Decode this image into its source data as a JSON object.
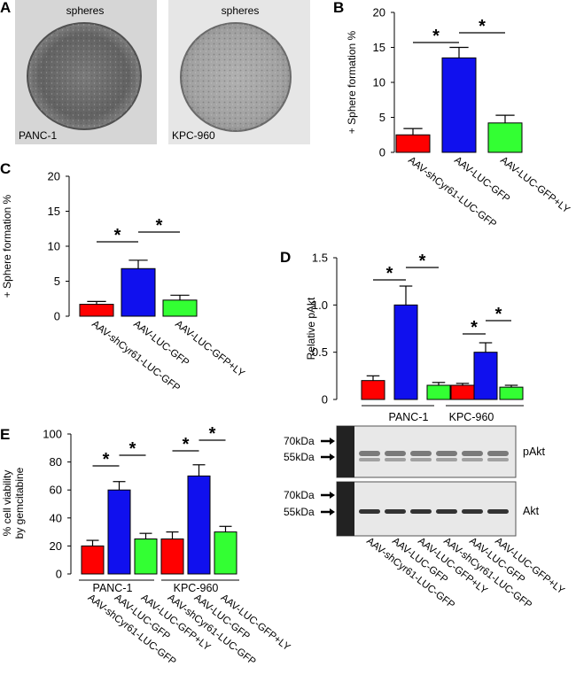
{
  "colors": {
    "red": "#ff0000",
    "blue": "#1010ee",
    "green": "#33ff33"
  },
  "photos": {
    "panel_label": "A",
    "left_title": "spheres",
    "left_caption": "PANC-1",
    "right_title": "spheres",
    "right_caption": "KPC-960"
  },
  "blot": {
    "marker_70": "70kDa",
    "marker_55": "55kDa",
    "top_label": "pAkt",
    "bottom_label": "Akt",
    "lane_labels": [
      "AAV-shCyr61-LUC-GFP",
      "AAV-LUC-GFP",
      "AAV-LUC-GFP+LY",
      "AAV-shCyr61-LUC-GFP",
      "AAV-LUC-GFP",
      "AAV-LUC-GFP+LY"
    ]
  },
  "chart_data": [
    {
      "panel": "B",
      "type": "bar",
      "ylabel": "+ Sphere formation %",
      "ylim": [
        0,
        20
      ],
      "yticks": [
        "0",
        "5",
        "10",
        "15",
        "20"
      ],
      "categories": [
        "AAV-shCyr61-LUC-GFP",
        "AAV-LUC-GFP",
        "AAV-LUC-GFP+LY"
      ],
      "values": [
        2.5,
        13.5,
        4.2
      ],
      "errors": [
        0.9,
        1.5,
        1.1
      ],
      "significance": [
        "*",
        "*"
      ],
      "groups": []
    },
    {
      "panel": "C",
      "type": "bar",
      "ylabel": "+ Sphere formation %",
      "ylim": [
        0,
        20
      ],
      "yticks": [
        "0",
        "5",
        "10",
        "15",
        "20"
      ],
      "categories": [
        "AAV-shCyr61-LUC-GFP",
        "AAV-LUC-GFP",
        "AAV-LUC-GFP+LY"
      ],
      "values": [
        1.7,
        6.8,
        2.3
      ],
      "errors": [
        0.4,
        1.2,
        0.7
      ],
      "significance": [
        "*",
        "*"
      ],
      "groups": []
    },
    {
      "panel": "D",
      "type": "bar",
      "ylabel": "Relative pAkt",
      "ylim": [
        0,
        1.5
      ],
      "yticks": [
        "0",
        "0.5",
        "1.0",
        "1.5"
      ],
      "categories": [
        "AAV-shCyr61-LUC-GFP",
        "AAV-LUC-GFP",
        "AAV-LUC-GFP+LY",
        "AAV-shCyr61-LUC-GFP",
        "AAV-LUC-GFP",
        "AAV-LUC-GFP+LY"
      ],
      "values": [
        0.2,
        1.0,
        0.15,
        0.15,
        0.5,
        0.13
      ],
      "errors": [
        0.05,
        0.2,
        0.03,
        0.02,
        0.1,
        0.02
      ],
      "significance": [
        "*",
        "*",
        "*",
        "*"
      ],
      "groups": [
        "PANC-1",
        "KPC-960"
      ]
    },
    {
      "panel": "E",
      "type": "bar",
      "ylabel": "% cell viability",
      "ylabel2": "by gemcitabine",
      "ylim": [
        0,
        100
      ],
      "yticks": [
        "0",
        "20",
        "40",
        "60",
        "80",
        "100"
      ],
      "categories": [
        "AAV-shCyr61-LUC-GFP",
        "AAV-LUC-GFP",
        "AAV-LUC-GFP+LY",
        "AAV-shCyr61-LUC-GFP",
        "AAV-LUC-GFP",
        "AAV-LUC-GFP+LY"
      ],
      "values": [
        20,
        60,
        25,
        25,
        70,
        30
      ],
      "errors": [
        4,
        6,
        4,
        5,
        8,
        4
      ],
      "significance": [
        "*",
        "*",
        "*",
        "*"
      ],
      "groups": [
        "PANC-1",
        "KPC-960"
      ]
    }
  ]
}
